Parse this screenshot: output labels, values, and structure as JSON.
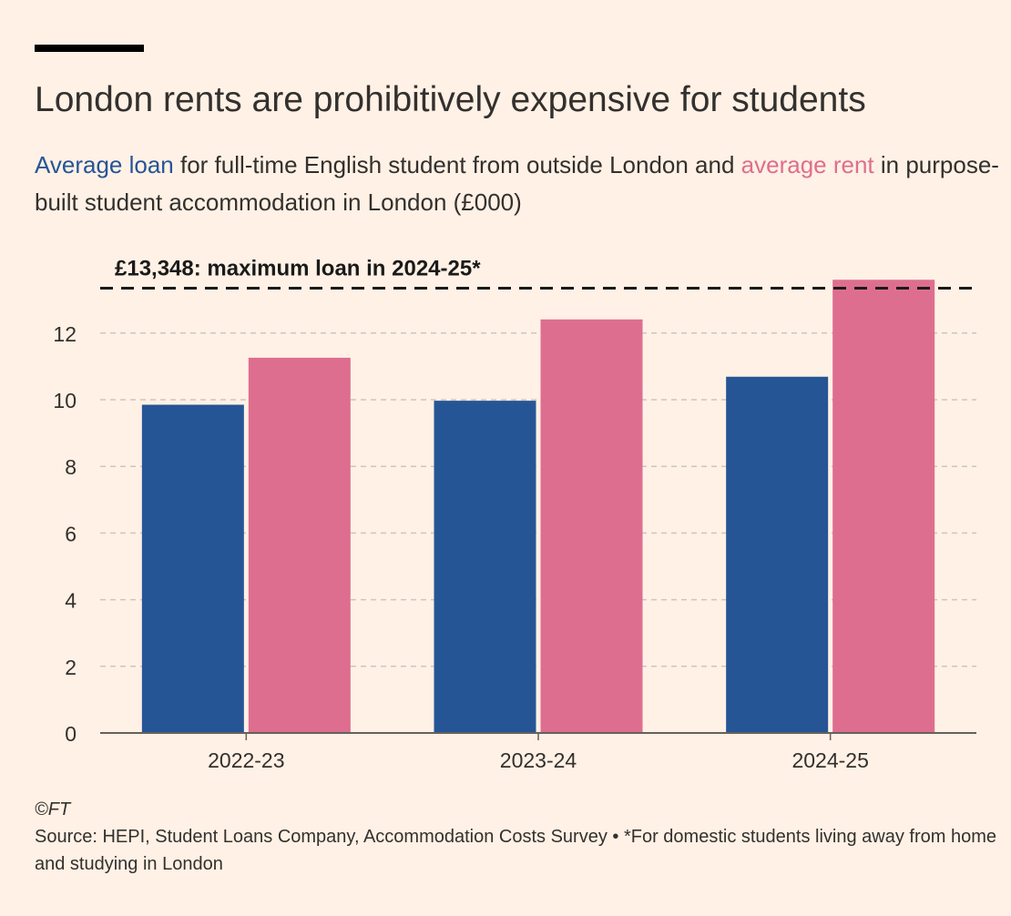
{
  "header": {
    "title": "London rents are prohibitively expensive for students",
    "subtitle_loan": "Average loan",
    "subtitle_mid": " for full-time English student from outside London and ",
    "subtitle_rent": "average rent",
    "subtitle_end": " in purpose-built student accommodation in London (£000)"
  },
  "footer": {
    "credit": "©FT",
    "source": "Source: HEPI, Student Loans Company, Accommodation Costs Survey • *For domestic students living away from home and studying in London"
  },
  "colors": {
    "background": "#FFF1E5",
    "loan": "#265596",
    "rent": "#DE6E8F",
    "text": "#33302E",
    "grid": "#CEC6BE"
  },
  "chart_data": {
    "type": "bar",
    "categories": [
      "2022-23",
      "2023-24",
      "2024-25"
    ],
    "series": [
      {
        "name": "Average loan",
        "color": "#265596",
        "values": [
          9.85,
          9.97,
          10.69
        ]
      },
      {
        "name": "average rent",
        "color": "#DE6E8F",
        "values": [
          11.26,
          12.41,
          13.6
        ]
      }
    ],
    "yticks": [
      "0",
      "2",
      "4",
      "6",
      "8",
      "10",
      "12"
    ],
    "ylim": [
      0,
      14
    ],
    "grid": true,
    "reference_line": {
      "value": 13.348,
      "label": "£13,348: maximum loan in 2024-25*"
    }
  }
}
